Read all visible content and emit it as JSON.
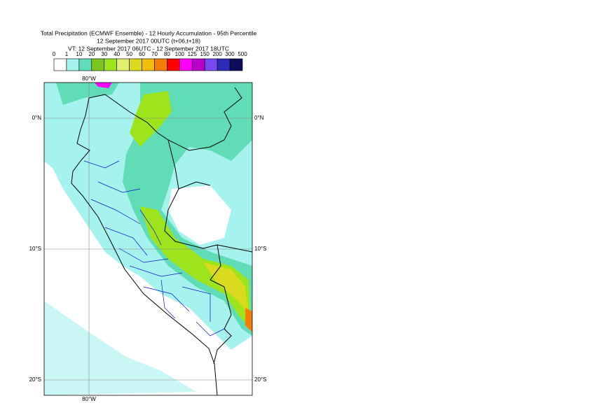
{
  "header": {
    "title_lines": [
      "Total Precipitation (ECMWF Ensemble) - 12 Hourly Accumulation - 95th Percentile",
      "12 September 2017 00UTC (t+06,t+18)",
      "VT: 12 September 2017 06UTC - 12 September 2017 18UTC"
    ]
  },
  "legend": {
    "thresholds": [
      0,
      1,
      10,
      20,
      30,
      40,
      50,
      60,
      70,
      80,
      100,
      125,
      150,
      200,
      300,
      500
    ],
    "colors": [
      "#ffffff",
      "#a6f2ee",
      "#60dcb6",
      "#7cc51e",
      "#9ee41c",
      "#e2f06e",
      "#dada1e",
      "#f3bd08",
      "#f37f08",
      "#ff0000",
      "#ff00ff",
      "#b800c8",
      "#7848f0",
      "#2c2cb8",
      "#0c0c58"
    ]
  },
  "map": {
    "lon_labels": [
      "80°W"
    ],
    "lat_labels": [
      "0°N",
      "10°S",
      "20°S"
    ]
  }
}
